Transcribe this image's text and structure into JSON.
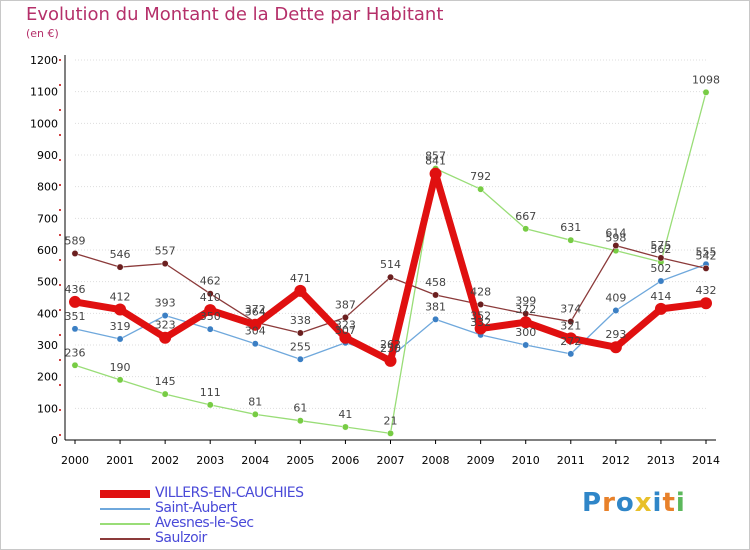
{
  "header": {
    "title": "Evolution du Montant de la Dette par Habitant",
    "unit": "(en €)"
  },
  "logo": {
    "text": [
      "P",
      "r",
      "o",
      "x",
      "i",
      "t",
      "i"
    ],
    "colors": [
      "#2f86c8",
      "#e8812a",
      "#2f86c8",
      "#e8c02a",
      "#2f86c8",
      "#e8812a",
      "#5cb85c"
    ]
  },
  "colors": {
    "title": "#b5306a",
    "axis": "#000000",
    "grid": "#dddddd",
    "legend_text": "#4a4ad8"
  },
  "chart_data": {
    "type": "line",
    "title": "Evolution du Montant de la Dette par Habitant",
    "ylabel": "(en €)",
    "xlabel": "",
    "x": [
      "2000",
      "2001",
      "2002",
      "2003",
      "2004",
      "2005",
      "2006",
      "2007",
      "2008",
      "2009",
      "2010",
      "2011",
      "2012",
      "2013",
      "2014"
    ],
    "ylim": [
      0,
      1200
    ],
    "yticks": [
      0,
      100,
      200,
      300,
      400,
      500,
      600,
      700,
      800,
      900,
      1000,
      1100,
      1200
    ],
    "grid": true,
    "legend_position": "bottom-left",
    "series": [
      {
        "name": "VILLERS-EN-CAUCHIES",
        "color": "#e01010",
        "marker": "#e01010",
        "width": 7,
        "labels": true,
        "values": [
          436,
          412,
          323,
          410,
          364,
          471,
          323,
          250,
          841,
          352,
          372,
          321,
          293,
          414,
          432
        ]
      },
      {
        "name": "Saint-Aubert",
        "color": "#6fa8dc",
        "marker": "#3b7fc4",
        "width": 1.3,
        "labels": true,
        "values": [
          351,
          319,
          393,
          350,
          304,
          255,
          307,
          262,
          381,
          332,
          300,
          272,
          409,
          502,
          555
        ]
      },
      {
        "name": "Avesnes-le-Sec",
        "color": "#99dd77",
        "marker": "#77cc44",
        "width": 1.3,
        "labels": true,
        "values": [
          236,
          190,
          145,
          111,
          81,
          61,
          41,
          21,
          857,
          792,
          667,
          631,
          598,
          562,
          1098
        ]
      },
      {
        "name": "Saulzoir",
        "color": "#8b3a3a",
        "marker": "#6b1f1f",
        "width": 1.3,
        "labels": true,
        "values": [
          589,
          546,
          557,
          462,
          372,
          338,
          387,
          514,
          458,
          428,
          399,
          374,
          614,
          575,
          542
        ]
      }
    ]
  }
}
